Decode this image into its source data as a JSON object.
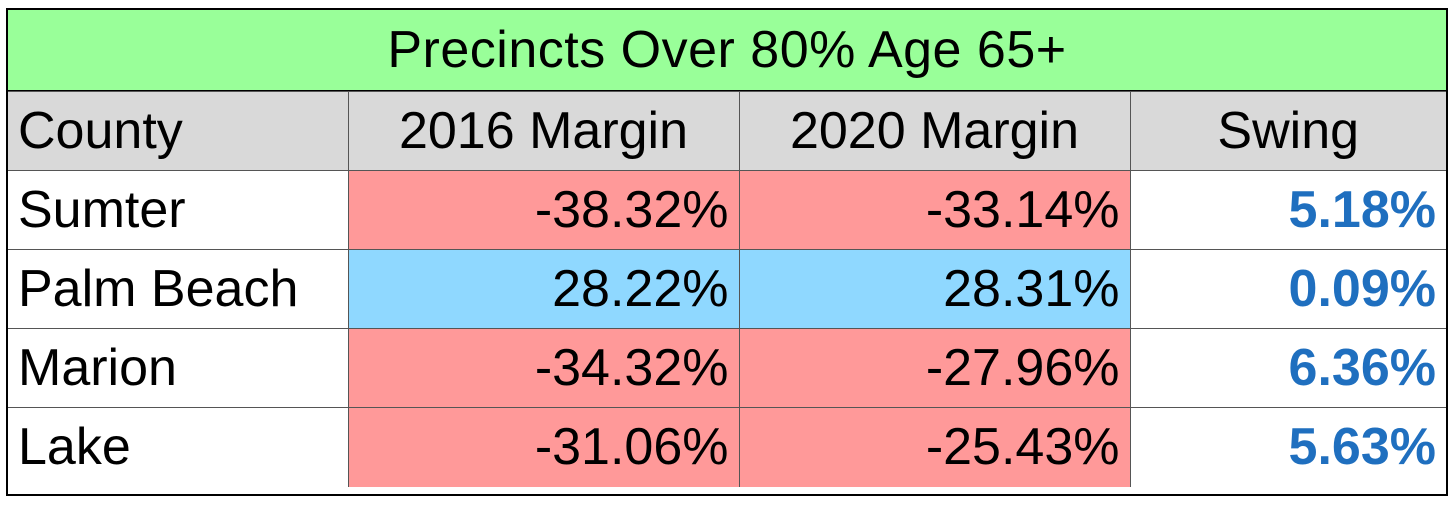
{
  "chart_data": {
    "type": "table",
    "title": "Precincts Over 80% Age 65+",
    "columns": [
      "County",
      "2016 Margin",
      "2020 Margin",
      "Swing"
    ],
    "rows": [
      {
        "county": "Sumter",
        "margin_2016": "-38.32%",
        "margin_2020": "-33.14%",
        "swing": "5.18%",
        "fill": "#ff9999"
      },
      {
        "county": "Palm Beach",
        "margin_2016": "28.22%",
        "margin_2020": "28.31%",
        "swing": "0.09%",
        "fill": "#8fd8ff"
      },
      {
        "county": "Marion",
        "margin_2016": "-34.32%",
        "margin_2020": "-27.96%",
        "swing": "6.36%",
        "fill": "#ff9999"
      },
      {
        "county": "Lake",
        "margin_2016": "-31.06%",
        "margin_2020": "-25.43%",
        "swing": "5.63%",
        "fill": "#ff9999"
      }
    ],
    "colors": {
      "title_fill": "#99ff99",
      "header_fill": "#d9d9d9",
      "republican_fill": "#ff9999",
      "democratic_fill": "#8fd8ff",
      "swing_text": "#1f6fbf"
    }
  }
}
